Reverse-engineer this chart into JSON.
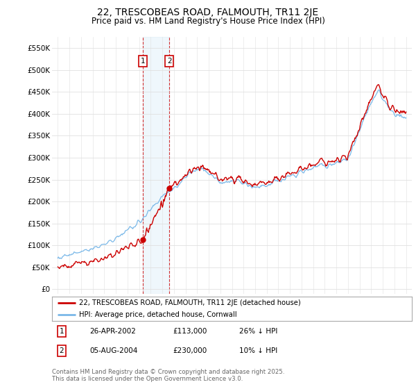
{
  "title": "22, TRESCOBEAS ROAD, FALMOUTH, TR11 2JE",
  "subtitle": "Price paid vs. HM Land Registry's House Price Index (HPI)",
  "title_fontsize": 10,
  "subtitle_fontsize": 8.5,
  "ylabel_vals": [
    0,
    50000,
    100000,
    150000,
    200000,
    250000,
    300000,
    350000,
    400000,
    450000,
    500000,
    550000
  ],
  "ylabel_labels": [
    "£0",
    "£50K",
    "£100K",
    "£150K",
    "£200K",
    "£250K",
    "£300K",
    "£350K",
    "£400K",
    "£450K",
    "£500K",
    "£550K"
  ],
  "xlim_start": 1994.5,
  "xlim_end": 2025.5,
  "ylim_min": -10000,
  "ylim_max": 575000,
  "hpi_color": "#7ab8e8",
  "price_color": "#cc0000",
  "transaction1_date": 2002.32,
  "transaction1_price": 113000,
  "transaction1_label": "1",
  "transaction2_date": 2004.6,
  "transaction2_price": 230000,
  "transaction2_label": "2",
  "legend_line1": "22, TRESCOBEAS ROAD, FALMOUTH, TR11 2JE (detached house)",
  "legend_line2": "HPI: Average price, detached house, Cornwall",
  "table_row1": [
    "1",
    "26-APR-2002",
    "£113,000",
    "26% ↓ HPI"
  ],
  "table_row2": [
    "2",
    "05-AUG-2004",
    "£230,000",
    "10% ↓ HPI"
  ],
  "footer": "Contains HM Land Registry data © Crown copyright and database right 2025.\nThis data is licensed under the Open Government Licence v3.0.",
  "background_color": "#ffffff",
  "grid_color": "#e0e0e0"
}
